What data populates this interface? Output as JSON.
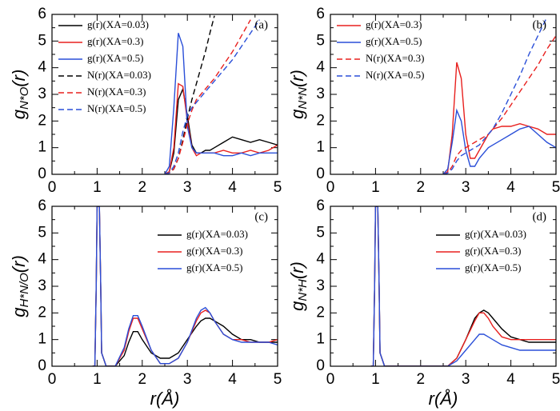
{
  "chart_data": [
    {
      "type": "line",
      "panel_label": "(a)",
      "legend": "upper left",
      "ylabel": {
        "symbol": "g",
        "subscript": "N*O",
        "argument": "(r)"
      },
      "xlim": [
        0,
        5
      ],
      "ylim": [
        0,
        6
      ],
      "xticks": [
        0,
        1,
        2,
        3,
        4,
        5
      ],
      "yticks": [
        0,
        1,
        2,
        3,
        4,
        5,
        6
      ],
      "x": [
        2.5,
        2.6,
        2.7,
        2.8,
        2.9,
        3.0,
        3.1,
        3.2,
        3.3,
        3.4,
        3.5,
        3.6,
        3.8,
        4.0,
        4.2,
        4.4,
        4.6,
        4.8,
        5.0
      ],
      "series": [
        {
          "name": "g(r)(XA=0.03)",
          "color": "#000000",
          "dash": "solid",
          "values": [
            0,
            0.1,
            0.8,
            2.8,
            3.2,
            2.2,
            1.1,
            0.8,
            0.8,
            0.9,
            0.9,
            1.0,
            1.2,
            1.4,
            1.3,
            1.2,
            1.3,
            1.2,
            1.1
          ]
        },
        {
          "name": "g(r)(XA=0.3)",
          "color": "#e8201e",
          "dash": "solid",
          "values": [
            0,
            0.1,
            1.0,
            3.4,
            3.3,
            2.0,
            1.0,
            0.7,
            0.8,
            0.8,
            0.8,
            0.8,
            0.9,
            0.8,
            0.8,
            0.9,
            0.8,
            0.9,
            1.1
          ]
        },
        {
          "name": "g(r)(XA=0.5)",
          "color": "#2a4fd8",
          "dash": "solid",
          "values": [
            0,
            0.3,
            2.5,
            5.3,
            4.8,
            1.8,
            1.0,
            0.8,
            0.8,
            0.8,
            0.8,
            0.8,
            0.7,
            0.7,
            0.8,
            0.7,
            0.8,
            0.8,
            0.8
          ]
        },
        {
          "name": "N(r)(XA=0.03)",
          "color": "#000000",
          "dash": "dashed",
          "values": [
            0,
            0.05,
            0.2,
            0.6,
            1.3,
            2.1,
            2.8,
            3.4,
            4.0,
            4.6,
            5.3,
            5.95,
            null,
            null,
            null,
            null,
            null,
            null,
            null
          ]
        },
        {
          "name": "N(r)(XA=0.3)",
          "color": "#e8201e",
          "dash": "dashed",
          "values": [
            0,
            0.05,
            0.2,
            0.6,
            1.2,
            1.9,
            2.4,
            2.8,
            3.0,
            3.2,
            3.4,
            3.6,
            4.1,
            4.6,
            5.2,
            5.8,
            null,
            null,
            null
          ]
        },
        {
          "name": "N(r)(XA=0.5)",
          "color": "#2a4fd8",
          "dash": "dashed",
          "values": [
            0,
            0.05,
            0.3,
            0.8,
            1.6,
            2.2,
            2.5,
            2.7,
            2.9,
            3.1,
            3.3,
            3.5,
            3.9,
            4.3,
            4.8,
            5.3,
            5.8,
            null,
            null
          ]
        }
      ]
    },
    {
      "type": "line",
      "panel_label": "(b)",
      "legend": "upper left",
      "ylabel": {
        "symbol": "g",
        "subscript": "N*N",
        "argument": "(r)"
      },
      "xlim": [
        0,
        5
      ],
      "ylim": [
        0,
        6
      ],
      "xticks": [
        0,
        1,
        2,
        3,
        4,
        5
      ],
      "yticks": [
        0,
        1,
        2,
        3,
        4,
        5,
        6
      ],
      "x": [
        2.5,
        2.6,
        2.7,
        2.8,
        2.9,
        3.0,
        3.1,
        3.2,
        3.3,
        3.4,
        3.5,
        3.6,
        3.8,
        4.0,
        4.2,
        4.4,
        4.6,
        4.8,
        5.0
      ],
      "series": [
        {
          "name": "g(r)(XA=0.3)",
          "color": "#e8201e",
          "dash": "solid",
          "values": [
            0,
            0.1,
            1.5,
            4.2,
            3.6,
            1.5,
            0.6,
            0.6,
            0.9,
            1.2,
            1.5,
            1.7,
            1.8,
            1.8,
            1.9,
            1.8,
            1.7,
            1.5,
            1.5
          ]
        },
        {
          "name": "g(r)(XA=0.5)",
          "color": "#2a4fd8",
          "dash": "solid",
          "values": [
            0,
            0.2,
            1.2,
            2.4,
            2.0,
            0.9,
            0.3,
            0.3,
            0.6,
            0.8,
            1.0,
            1.1,
            1.3,
            1.5,
            1.7,
            1.8,
            1.5,
            1.2,
            1.0
          ]
        },
        {
          "name": "N(r)(XA=0.3)",
          "color": "#e8201e",
          "dash": "dashed",
          "values": [
            0,
            0.05,
            0.3,
            0.7,
            0.9,
            1.0,
            1.1,
            1.2,
            1.3,
            1.4,
            1.5,
            1.7,
            2.1,
            2.6,
            3.1,
            3.6,
            4.1,
            4.7,
            5.2
          ]
        },
        {
          "name": "N(r)(XA=0.5)",
          "color": "#2a4fd8",
          "dash": "dashed",
          "values": [
            0,
            0.05,
            0.2,
            0.5,
            0.7,
            0.8,
            0.9,
            1.0,
            1.1,
            1.3,
            1.5,
            1.7,
            2.3,
            3.0,
            3.7,
            4.5,
            5.2,
            5.9,
            null
          ]
        }
      ]
    },
    {
      "type": "line",
      "panel_label": "(c)",
      "legend": "upper right",
      "ylabel": {
        "symbol": "g",
        "subscript": "H*N/O",
        "argument": "(r)"
      },
      "xlabel": "r(Å)",
      "xlim": [
        0,
        5
      ],
      "ylim": [
        0,
        6
      ],
      "xticks": [
        0,
        1,
        2,
        3,
        4,
        5
      ],
      "yticks": [
        0,
        1,
        2,
        3,
        4,
        5,
        6
      ],
      "x": [
        0.9,
        0.95,
        0.98,
        1.0,
        1.05,
        1.08,
        1.1,
        1.2,
        1.4,
        1.6,
        1.7,
        1.8,
        1.9,
        2.0,
        2.2,
        2.4,
        2.6,
        2.8,
        3.0,
        3.2,
        3.3,
        3.4,
        3.5,
        3.6,
        3.8,
        4.0,
        4.2,
        4.4,
        4.6,
        4.8,
        5.0
      ],
      "series": [
        {
          "name": "g(r)(XA=0.03)",
          "color": "#000000",
          "dash": "solid",
          "values": [
            0,
            0,
            3,
            6,
            6,
            3,
            0.5,
            0,
            0,
            0.4,
            0.9,
            1.3,
            1.3,
            1.0,
            0.5,
            0.3,
            0.3,
            0.5,
            1.0,
            1.5,
            1.7,
            1.8,
            1.8,
            1.7,
            1.5,
            1.2,
            1.0,
            1.0,
            0.9,
            0.9,
            0.9
          ]
        },
        {
          "name": "g(r)(XA=0.3)",
          "color": "#e8201e",
          "dash": "solid",
          "values": [
            0,
            0,
            3,
            6,
            6,
            3,
            0.5,
            0,
            0,
            0.6,
            1.3,
            1.8,
            1.8,
            1.4,
            0.6,
            0.1,
            0.1,
            0.3,
            0.9,
            1.7,
            2.0,
            2.1,
            2.0,
            1.7,
            1.2,
            1.0,
            1.0,
            0.9,
            0.9,
            0.9,
            1.0
          ]
        },
        {
          "name": "g(r)(XA=0.5)",
          "color": "#2a4fd8",
          "dash": "solid",
          "values": [
            0,
            0,
            3,
            6,
            6,
            3,
            0.5,
            0,
            0,
            0.7,
            1.4,
            1.9,
            1.9,
            1.5,
            0.6,
            0.1,
            0.1,
            0.3,
            0.9,
            1.8,
            2.1,
            2.2,
            2.0,
            1.7,
            1.2,
            1.0,
            0.9,
            0.9,
            0.9,
            0.9,
            0.8
          ]
        }
      ]
    },
    {
      "type": "line",
      "panel_label": "(d)",
      "legend": "upper right",
      "ylabel": {
        "symbol": "g",
        "subscript": "N*H",
        "argument": "(r)"
      },
      "xlabel": "r(Å)",
      "xlim": [
        0,
        5
      ],
      "ylim": [
        0,
        6
      ],
      "xticks": [
        0,
        1,
        2,
        3,
        4,
        5
      ],
      "yticks": [
        0,
        1,
        2,
        3,
        4,
        5,
        6
      ],
      "x": [
        0.9,
        0.95,
        0.98,
        1.0,
        1.05,
        1.08,
        1.1,
        1.2,
        1.4,
        1.6,
        1.7,
        1.8,
        1.9,
        2.0,
        2.2,
        2.4,
        2.6,
        2.8,
        3.0,
        3.2,
        3.3,
        3.4,
        3.5,
        3.6,
        3.8,
        4.0,
        4.2,
        4.4,
        4.6,
        4.8,
        5.0
      ],
      "series": [
        {
          "name": "g(r)(XA=0.03)",
          "color": "#000000",
          "dash": "solid",
          "values": [
            0,
            0,
            3,
            6,
            6,
            3,
            0.5,
            0,
            0,
            0,
            0,
            0,
            0,
            0,
            0,
            0,
            0,
            0.3,
            1.0,
            1.8,
            2.0,
            2.1,
            2.0,
            1.8,
            1.4,
            1.1,
            1.0,
            0.9,
            0.9,
            0.9,
            0.9
          ]
        },
        {
          "name": "g(r)(XA=0.3)",
          "color": "#e8201e",
          "dash": "solid",
          "values": [
            0,
            0,
            3,
            6,
            6,
            3,
            0.5,
            0,
            0,
            0,
            0,
            0,
            0,
            0,
            0,
            0,
            0,
            0.3,
            1.0,
            1.7,
            2.0,
            2.0,
            1.8,
            1.5,
            1.1,
            1.0,
            1.0,
            1.0,
            1.0,
            1.0,
            1.0
          ]
        },
        {
          "name": "g(r)(XA=0.5)",
          "color": "#2a4fd8",
          "dash": "solid",
          "values": [
            0,
            0,
            3,
            6,
            6,
            3,
            0.5,
            0,
            0,
            0,
            0,
            0,
            0,
            0,
            0,
            0,
            0,
            0.2,
            0.6,
            1.0,
            1.2,
            1.2,
            1.1,
            1.0,
            0.8,
            0.7,
            0.6,
            0.6,
            0.6,
            0.6,
            0.6
          ]
        }
      ]
    }
  ]
}
